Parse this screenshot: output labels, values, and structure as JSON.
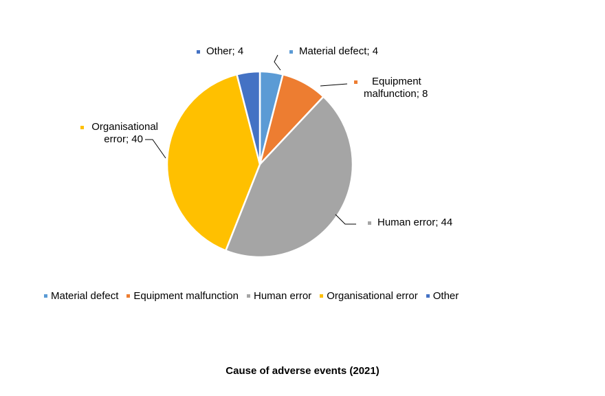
{
  "chart_data": {
    "type": "pie",
    "categories": [
      "Material defect",
      "Equipment malfunction",
      "Human error",
      "Organisational error",
      "Other"
    ],
    "values": [
      4,
      8,
      44,
      40,
      4
    ],
    "colors": [
      "#5B9BD5",
      "#ED7D31",
      "#A5A5A5",
      "#FFC000",
      "#4472C4"
    ],
    "data_labels": [
      "Material defect; 4",
      "Equipment malfunction; 8",
      "Human error; 44",
      "Organisational error; 40",
      "Other; 4"
    ],
    "legend_position": "bottom",
    "caption": "Cause of adverse events (2021)"
  }
}
